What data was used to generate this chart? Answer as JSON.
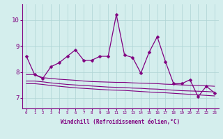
{
  "xlabel": "Windchill (Refroidissement éolien,°C)",
  "x_values": [
    0,
    1,
    2,
    3,
    4,
    5,
    6,
    7,
    8,
    9,
    10,
    11,
    12,
    13,
    14,
    15,
    16,
    17,
    18,
    19,
    20,
    21,
    22,
    23
  ],
  "main_line": [
    8.6,
    7.9,
    7.75,
    8.2,
    8.35,
    8.6,
    8.85,
    8.45,
    8.45,
    8.6,
    8.6,
    10.2,
    8.65,
    8.55,
    7.95,
    8.75,
    9.35,
    8.4,
    7.55,
    7.55,
    7.7,
    7.05,
    7.45,
    7.2
  ],
  "upper_line": [
    7.9,
    7.9,
    7.78,
    7.75,
    7.72,
    7.7,
    7.68,
    7.65,
    7.63,
    7.62,
    7.61,
    7.6,
    7.6,
    7.58,
    7.57,
    7.56,
    7.55,
    7.53,
    7.52,
    7.5,
    7.49,
    7.48,
    7.47,
    7.45
  ],
  "middle_line": [
    7.65,
    7.65,
    7.62,
    7.58,
    7.55,
    7.52,
    7.5,
    7.48,
    7.46,
    7.44,
    7.42,
    7.41,
    7.4,
    7.38,
    7.37,
    7.35,
    7.34,
    7.32,
    7.3,
    7.28,
    7.27,
    7.26,
    7.25,
    7.23
  ],
  "lower_line": [
    7.55,
    7.55,
    7.52,
    7.48,
    7.45,
    7.42,
    7.39,
    7.37,
    7.35,
    7.33,
    7.31,
    7.3,
    7.29,
    7.27,
    7.25,
    7.23,
    7.21,
    7.2,
    7.18,
    7.16,
    7.14,
    7.12,
    7.1,
    7.08
  ],
  "line_color": "#800080",
  "bg_color": "#d4eeed",
  "grid_color": "#aed4d4",
  "ylim": [
    6.6,
    10.6
  ],
  "yticks": [
    7,
    8,
    9,
    10
  ],
  "marker": "D",
  "marker_size": 2.5
}
